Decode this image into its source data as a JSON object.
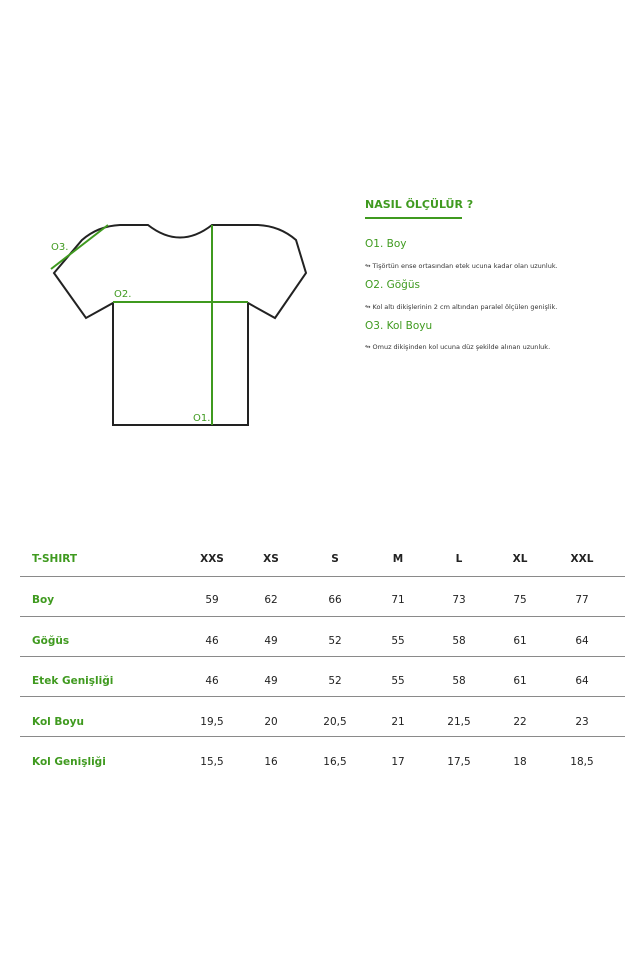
{
  "colors": {
    "accent": "#3f9a1f",
    "outline": "#222222"
  },
  "diagram": {
    "labels": {
      "o1": "O1.",
      "o2": "O2.",
      "o3": "O3."
    }
  },
  "howto": {
    "title": "NASIL ÖLÇÜLÜR ?",
    "steps": [
      {
        "title": "O1. Boy",
        "desc": "↬ Tişörtün ense ortasından etek ucuna kadar olan uzunluk."
      },
      {
        "title": "O2. Göğüs",
        "desc": "↬ Kol altı dikişlerinin 2 cm altından paralel ölçülen genişlik."
      },
      {
        "title": "O3. Kol Boyu",
        "desc": "↬ Omuz dikişinden kol ucuna düz şekilde alınan uzunluk."
      }
    ]
  },
  "table": {
    "header": "T-SHIRT",
    "sizes": [
      "XXS",
      "XS",
      "S",
      "M",
      "L",
      "XL",
      "XXL"
    ],
    "rows": [
      {
        "label": "Boy",
        "values": [
          "59",
          "62",
          "66",
          "71",
          "73",
          "75",
          "77"
        ]
      },
      {
        "label": "Göğüs",
        "values": [
          "46",
          "49",
          "52",
          "55",
          "58",
          "61",
          "64"
        ]
      },
      {
        "label": "Etek Genişliği",
        "values": [
          "46",
          "49",
          "52",
          "55",
          "58",
          "61",
          "64"
        ]
      },
      {
        "label": "Kol Boyu",
        "values": [
          "19,5",
          "20",
          "20,5",
          "21",
          "21,5",
          "22",
          "23"
        ]
      },
      {
        "label": "Kol Genişliği",
        "values": [
          "15,5",
          "16",
          "16,5",
          "17",
          "17,5",
          "18",
          "18,5"
        ]
      }
    ]
  }
}
